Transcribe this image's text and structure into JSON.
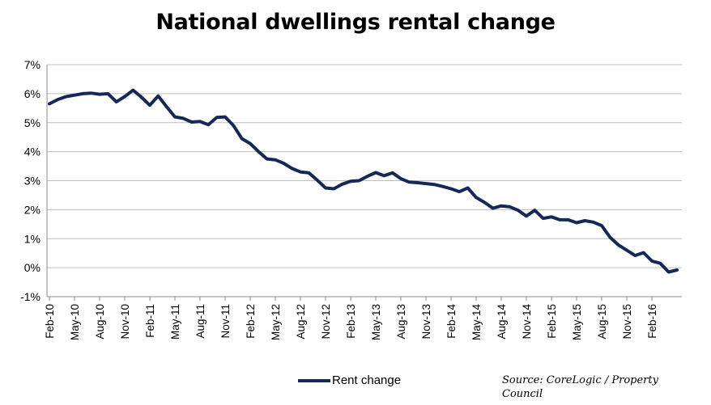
{
  "chart_data": {
    "type": "line",
    "title": "National dwellings rental change",
    "xlabel": "",
    "ylabel": "",
    "ylim": [
      -1,
      7
    ],
    "y_ticks": [
      "-1%",
      "0%",
      "1%",
      "2%",
      "3%",
      "4%",
      "5%",
      "6%",
      "7%"
    ],
    "y_tick_values": [
      -1,
      0,
      1,
      2,
      3,
      4,
      5,
      6,
      7
    ],
    "grid": true,
    "legend_position": "bottom",
    "x_tick_labels": [
      "Feb-10",
      "May-10",
      "Aug-10",
      "Nov-10",
      "Feb-11",
      "May-11",
      "Aug-11",
      "Nov-11",
      "Feb-12",
      "May-12",
      "Aug-12",
      "Nov-12",
      "Feb-13",
      "May-13",
      "Aug-13",
      "Nov-13",
      "Feb-14",
      "May-14",
      "Aug-14",
      "Nov-14",
      "Feb-15",
      "May-15",
      "Aug-15",
      "Nov-15",
      "Feb-16"
    ],
    "series": [
      {
        "name": "Rent change",
        "color": "#14285a",
        "values": [
          5.65,
          5.8,
          5.9,
          5.95,
          6.0,
          6.02,
          5.98,
          6.0,
          5.72,
          5.9,
          6.12,
          5.88,
          5.6,
          5.92,
          5.55,
          5.2,
          5.15,
          5.02,
          5.04,
          4.93,
          5.18,
          5.2,
          4.9,
          4.45,
          4.28,
          4.0,
          3.75,
          3.72,
          3.6,
          3.42,
          3.3,
          3.27,
          3.02,
          2.75,
          2.72,
          2.88,
          2.98,
          3.0,
          3.15,
          3.28,
          3.17,
          3.27,
          3.07,
          2.95,
          2.93,
          2.9,
          2.87,
          2.8,
          2.72,
          2.62,
          2.75,
          2.42,
          2.25,
          2.05,
          2.13,
          2.1,
          1.98,
          1.78,
          1.98,
          1.7,
          1.75,
          1.65,
          1.65,
          1.55,
          1.62,
          1.57,
          1.45,
          1.05,
          0.78,
          0.6,
          0.42,
          0.52,
          0.23,
          0.15,
          -0.15,
          -0.08
        ]
      }
    ]
  },
  "legend": {
    "label": "Rent change"
  },
  "source": {
    "text": "Source: CoreLogic / Property Council"
  }
}
